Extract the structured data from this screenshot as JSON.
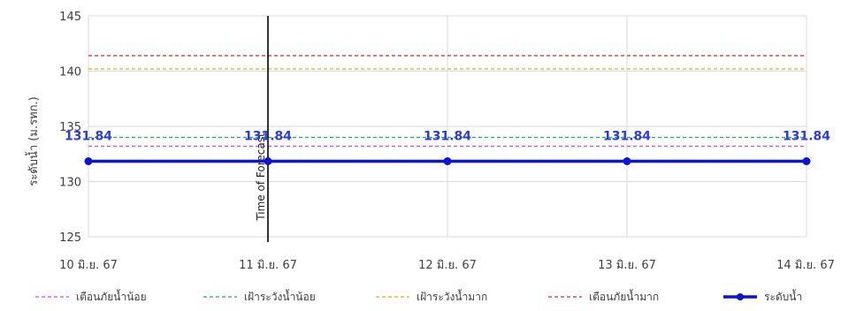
{
  "chart_data": {
    "type": "line",
    "title": "",
    "xlabel": "",
    "ylabel": "ระดับน้ำ (ม.รทก.)",
    "ylim": [
      125,
      145
    ],
    "y_ticks": [
      125,
      130,
      135,
      140,
      145
    ],
    "grid": true,
    "categories": [
      "10 มิ.ย. 67",
      "11 มิ.ย. 67",
      "12 มิ.ย. 67",
      "13 มิ.ย. 67",
      "14 มิ.ย. 67"
    ],
    "series": [
      {
        "name": "ระดับน้ำ",
        "values": [
          131.84,
          131.84,
          131.84,
          131.84,
          131.84
        ],
        "color": "#0a14d6",
        "style": "solid-marker",
        "data_labels": [
          "131.84",
          "131.84",
          "131.84",
          "131.84",
          "131.84"
        ]
      }
    ],
    "reference_lines": [
      {
        "name": "เตือนภัยน้ำน้อย",
        "value": 133.2,
        "color": "#e040d0"
      },
      {
        "name": "เฝ้าระวังน้ำน้อย",
        "value": 134.0,
        "color": "#22aa55"
      },
      {
        "name": "เฝ้าระวังน้ำมาก",
        "value": 140.2,
        "color": "#e0b000"
      },
      {
        "name": "เตือนภัยน้ำมาก",
        "value": 141.4,
        "color": "#e02020"
      }
    ],
    "marker_line": {
      "label": "Time of Forecast",
      "x_index": 1,
      "color": "#000000"
    },
    "legend_position": "bottom",
    "legend": [
      "เตือนภัยน้ำน้อย",
      "เฝ้าระวังน้ำน้อย",
      "เฝ้าระวังน้ำมาก",
      "เตือนภัยน้ำมาก",
      "ระดับน้ำ"
    ]
  }
}
